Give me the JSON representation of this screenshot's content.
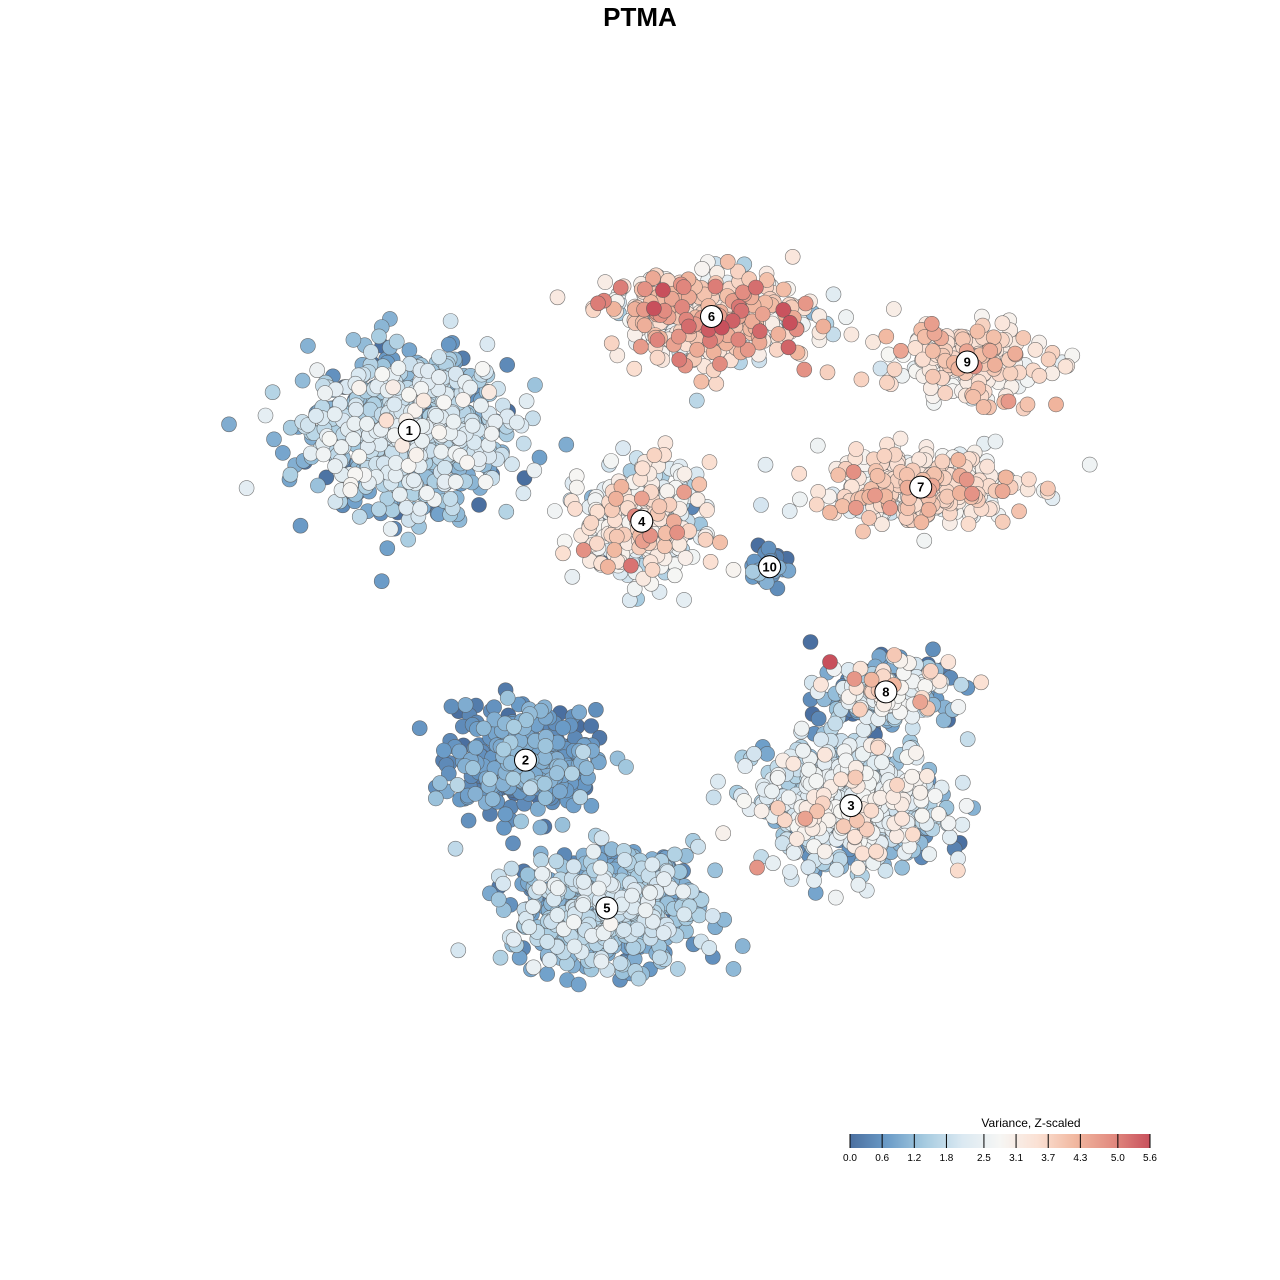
{
  "chart_data": {
    "type": "scatter",
    "title": "PTMA",
    "xlabel": "",
    "ylabel": "",
    "grid": false,
    "axes_visible": false,
    "colorbar": {
      "title": "Variance, Z-scaled",
      "range": [
        0.0,
        5.6
      ],
      "tick_labels": [
        "0.0",
        "0.6",
        "1.2",
        "1.8",
        "2.5",
        "3.1",
        "3.7",
        "4.3",
        "5.0",
        "5.6"
      ],
      "tick_values": [
        0.0,
        0.6,
        1.2,
        1.8,
        2.5,
        3.1,
        3.7,
        4.3,
        5.0,
        5.6
      ],
      "colors": [
        "#4a6fa0",
        "#6b9cc8",
        "#a6cbe0",
        "#dbe9f2",
        "#f6f6f4",
        "#fbe1d4",
        "#f1b8a0",
        "#e28b80",
        "#c8505c"
      ],
      "placement": "bottom-right"
    },
    "clusters": [
      {
        "label": "1",
        "x": -22,
        "y": 18,
        "spread": [
          7.5,
          6.0
        ],
        "n": 900,
        "mean_value": 1.3,
        "sd": 0.7
      },
      {
        "label": "2",
        "x": -12,
        "y": -11,
        "spread": [
          5.5,
          4.0
        ],
        "n": 380,
        "mean_value": 0.6,
        "sd": 0.4
      },
      {
        "label": "3",
        "x": 16,
        "y": -15,
        "spread": [
          7.0,
          5.0
        ],
        "n": 650,
        "mean_value": 1.9,
        "sd": 0.8
      },
      {
        "label": "4",
        "x": -2,
        "y": 10,
        "spread": [
          4.5,
          4.5
        ],
        "n": 380,
        "mean_value": 2.5,
        "sd": 0.9
      },
      {
        "label": "5",
        "x": -5,
        "y": -24,
        "spread": [
          7.0,
          4.5
        ],
        "n": 650,
        "mean_value": 1.2,
        "sd": 0.6
      },
      {
        "label": "6",
        "x": 4,
        "y": 28,
        "spread": [
          8.0,
          3.5
        ],
        "n": 420,
        "mean_value": 3.4,
        "sd": 0.9
      },
      {
        "label": "7",
        "x": 22,
        "y": 13,
        "spread": [
          8.0,
          3.0
        ],
        "n": 320,
        "mean_value": 3.2,
        "sd": 0.6
      },
      {
        "label": "8",
        "x": 19,
        "y": -5,
        "spread": [
          5.0,
          2.5
        ],
        "n": 260,
        "mean_value": 1.4,
        "sd": 1.2
      },
      {
        "label": "9",
        "x": 26,
        "y": 24,
        "spread": [
          6.0,
          3.0
        ],
        "n": 200,
        "mean_value": 3.3,
        "sd": 0.6
      },
      {
        "label": "10",
        "x": 9,
        "y": 6,
        "spread": [
          1.5,
          1.5
        ],
        "n": 40,
        "mean_value": 0.5,
        "sd": 0.5
      }
    ],
    "xlim": [
      -40,
      40
    ],
    "ylim": [
      -40,
      40
    ]
  }
}
